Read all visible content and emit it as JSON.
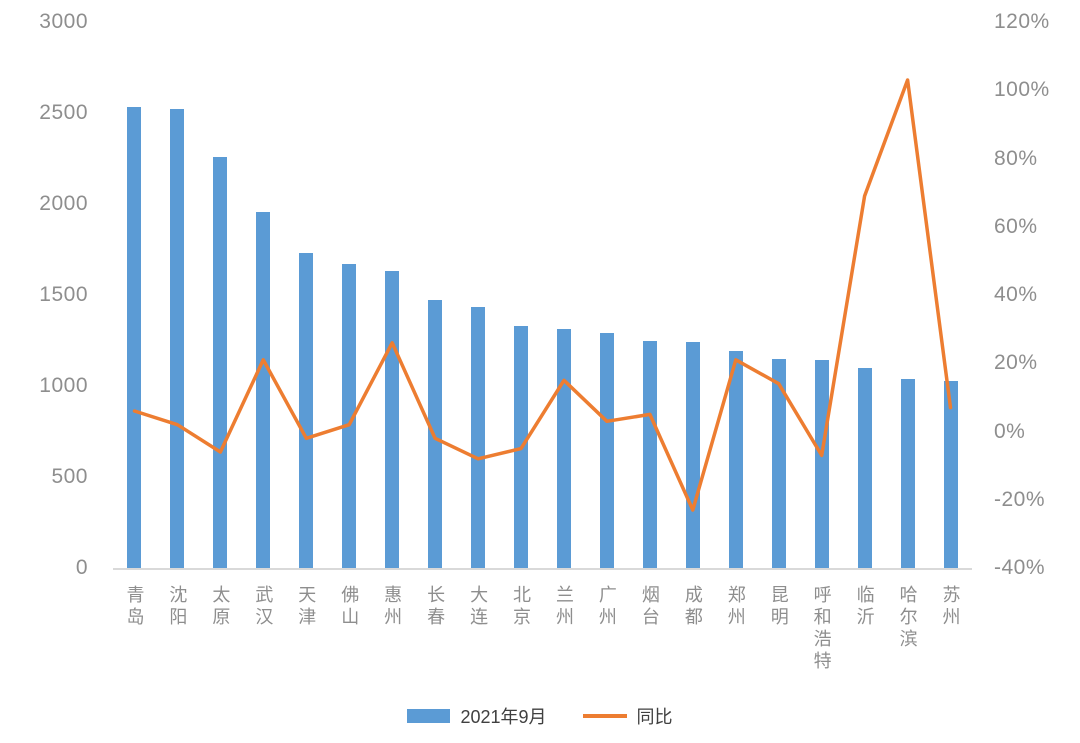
{
  "chart_data": {
    "type": "combo (bar + line, dual axis)",
    "title": "",
    "categories": [
      "青岛",
      "沈阳",
      "太原",
      "武汉",
      "天津",
      "佛山",
      "惠州",
      "长春",
      "大连",
      "北京",
      "兰州",
      "广州",
      "烟台",
      "成都",
      "郑州",
      "昆明",
      "呼和浩特",
      "临沂",
      "哈尔滨",
      "苏州"
    ],
    "series": [
      {
        "name": "2021年9月",
        "type": "bar",
        "axis": "left",
        "color": "#5B9BD5",
        "values": [
          2535,
          2520,
          2260,
          1955,
          1730,
          1670,
          1630,
          1470,
          1435,
          1330,
          1315,
          1290,
          1250,
          1240,
          1195,
          1150,
          1145,
          1100,
          1040,
          1025
        ]
      },
      {
        "name": "同比",
        "type": "line",
        "axis": "right",
        "color": "#ED7D31",
        "values_percent": [
          6,
          2,
          -6,
          21,
          -2,
          2,
          26,
          -2,
          -8,
          -5,
          15,
          3,
          5,
          -23,
          21,
          14,
          -7,
          69,
          103,
          7
        ]
      }
    ],
    "left_axis": {
      "min": 0,
      "max": 3000,
      "step": 500,
      "ticks": [
        "3000",
        "2500",
        "2000",
        "1500",
        "1000",
        "500",
        "0"
      ]
    },
    "right_axis": {
      "min": -40,
      "max": 120,
      "step": 20,
      "ticks": [
        "120%",
        "100%",
        "80%",
        "60%",
        "40%",
        "20%",
        "0%",
        "-20%",
        "-40%"
      ]
    },
    "grid": false,
    "legend_position": "bottom"
  },
  "colors": {
    "bar": "#5B9BD5",
    "line": "#ED7D31",
    "axis_text": "#8E8E8E",
    "legend_text": "#404040",
    "baseline": "#D9D9D9",
    "background": "#FFFFFF"
  }
}
